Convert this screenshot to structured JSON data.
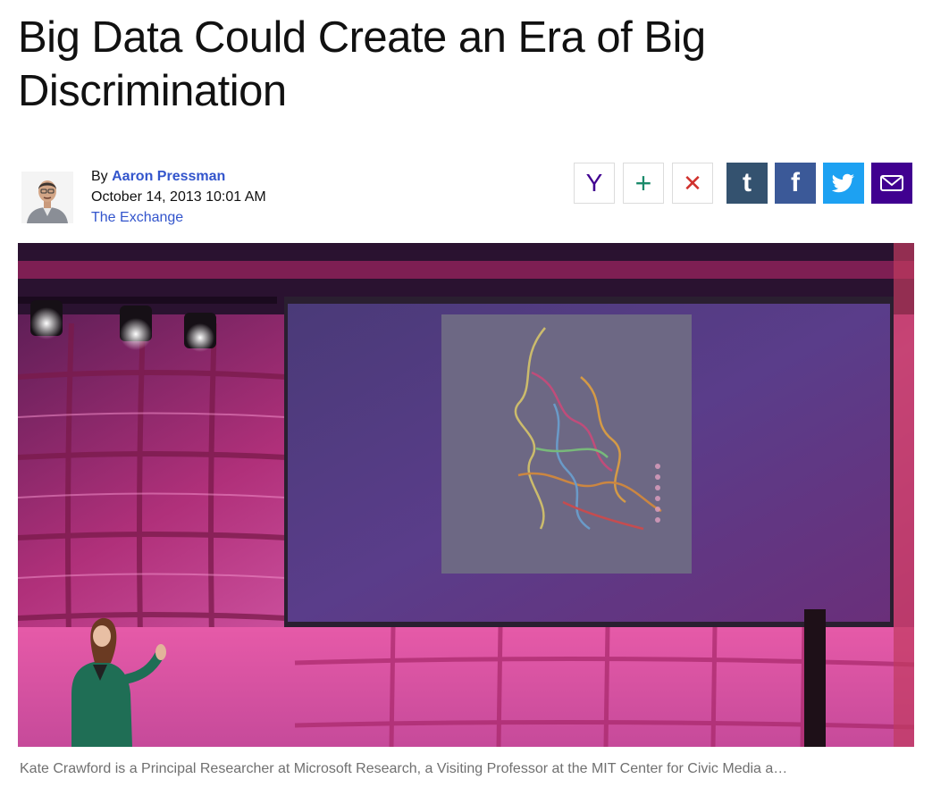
{
  "article": {
    "headline": "Big Data Could Create an Era of Big Discrimination",
    "byline_prefix": "By",
    "author": "Aaron Pressman",
    "date": "October 14, 2013 10:01 AM",
    "section": "The Exchange",
    "caption": "Kate Crawford is a Principal Researcher at Microsoft Research, a Visiting Professor at the MIT Center for Civic Media a…"
  },
  "share": [
    {
      "id": "yahoo",
      "glyph": "Y",
      "color": "#400090",
      "style": "outline",
      "icon": "yahoo-icon"
    },
    {
      "id": "add",
      "glyph": "+",
      "color": "#1a8a6a",
      "style": "outline",
      "icon": "plus-icon"
    },
    {
      "id": "close",
      "glyph": "✕",
      "color": "#d0312d",
      "style": "outline",
      "icon": "close-icon"
    },
    {
      "id": "tumblr",
      "glyph": "t",
      "color": "#34526f",
      "style": "solid",
      "icon": "tumblr-icon"
    },
    {
      "id": "facebook",
      "glyph": "f",
      "color": "#3b5998",
      "style": "solid",
      "icon": "facebook-icon"
    },
    {
      "id": "twitter",
      "glyph": "bird",
      "color": "#1da1f2",
      "style": "solid",
      "icon": "twitter-icon"
    },
    {
      "id": "email",
      "glyph": "envelope",
      "color": "#400090",
      "style": "solid",
      "icon": "mail-icon"
    }
  ]
}
